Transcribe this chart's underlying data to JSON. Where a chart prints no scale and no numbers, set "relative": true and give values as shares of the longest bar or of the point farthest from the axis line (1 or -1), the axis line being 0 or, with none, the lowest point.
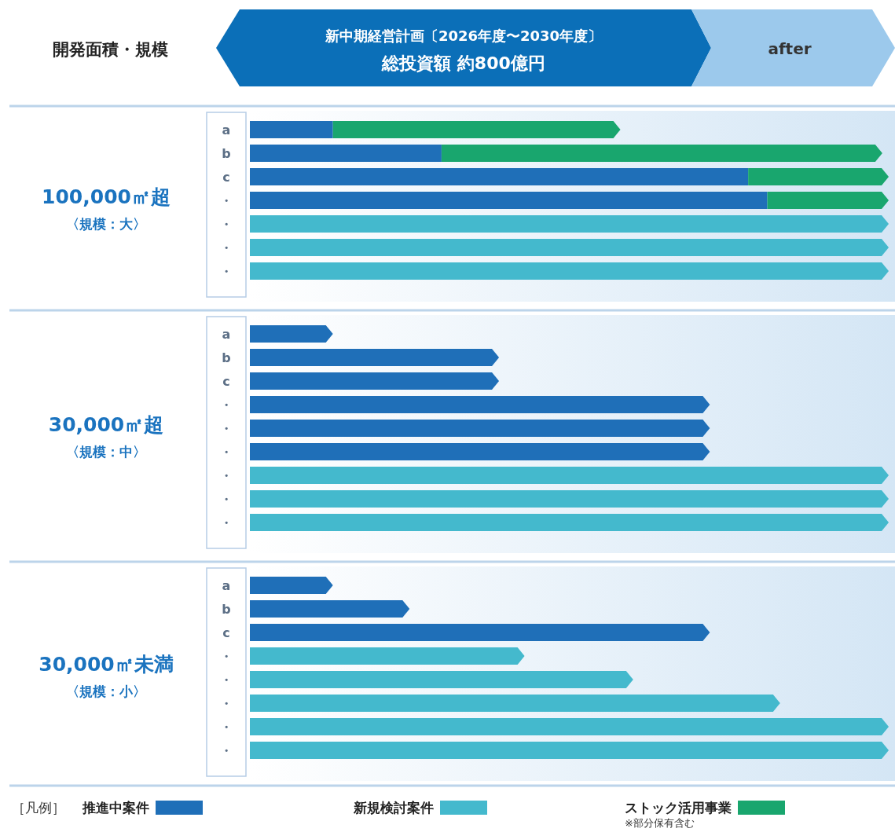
{
  "chart_data": [
    {
      "type": "other",
      "title": "開発面積・規模",
      "annotations": [
        "新中期経営計画〔2026年度〜2030年度〕",
        "総投資額 約800億円",
        "after"
      ]
    },
    {
      "type": "bar",
      "orientation": "horizontal",
      "stacked": true,
      "relative": true,
      "title": "100,000㎡超",
      "subtitle": "〈規模：大〉",
      "legend": "bottom",
      "legend_title": "［凡例］",
      "annotations": [
        "※部分保有含む"
      ],
      "categories": [
        "a",
        "b",
        "c",
        "・",
        "・",
        "・",
        "・"
      ],
      "series": [
        {
          "name": "推進中案件",
          "color": "#1f6fb8",
          "values": [
            0.13,
            0.3,
            0.78,
            0.81,
            null,
            null,
            null
          ]
        },
        {
          "name": "新規検討案件",
          "color": "#44b9cd",
          "values": [
            null,
            null,
            null,
            null,
            1.0,
            1.0,
            1.0
          ]
        },
        {
          "name": "ストック活用事業",
          "color": "#19a66e",
          "values": [
            0.45,
            0.69,
            0.22,
            0.19,
            null,
            null,
            null
          ]
        }
      ]
    },
    {
      "type": "bar",
      "orientation": "horizontal",
      "stacked": true,
      "relative": true,
      "title": "30,000㎡超",
      "subtitle": "〈規模：中〉",
      "categories": [
        "a",
        "b",
        "c",
        "・",
        "・",
        "・",
        "・",
        "・",
        "・"
      ],
      "series": [
        {
          "color": "#1f6fb8",
          "values": [
            0.13,
            0.39,
            0.39,
            0.72,
            0.72,
            0.72,
            null,
            null,
            null
          ]
        },
        {
          "color": "#44b9cd",
          "values": [
            null,
            null,
            null,
            null,
            null,
            null,
            1.0,
            1.0,
            1.0
          ]
        }
      ]
    },
    {
      "type": "bar",
      "orientation": "horizontal",
      "stacked": true,
      "relative": true,
      "title": "30,000㎡未満",
      "subtitle": "〈規模：小〉",
      "categories": [
        "a",
        "b",
        "c",
        "・",
        "・",
        "・",
        "・",
        "・"
      ],
      "series": [
        {
          "color": "#1f6fb8",
          "values": [
            0.13,
            0.25,
            0.72,
            null,
            null,
            null,
            null,
            null
          ]
        },
        {
          "color": "#44b9cd",
          "values": [
            null,
            null,
            null,
            0.43,
            0.6,
            0.83,
            1.0,
            1.0
          ]
        }
      ]
    }
  ]
}
